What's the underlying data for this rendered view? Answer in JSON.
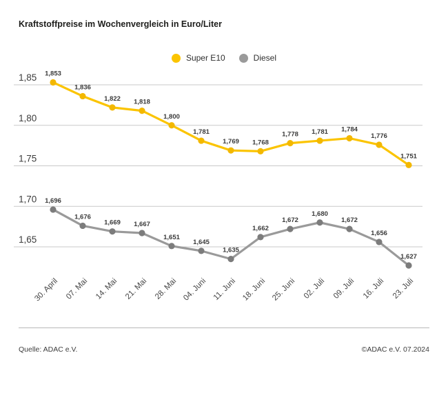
{
  "title": "Kraftstoffpreise im Wochenvergleich in Euro/Liter",
  "footer": {
    "source": "Quelle: ADAC e.V.",
    "copyright": "©ADAC e.V. 07.2024"
  },
  "chart_data": {
    "type": "line",
    "title": "Kraftstoffpreise im Wochenvergleich in Euro/Liter",
    "xlabel": "",
    "ylabel": "Euro/Liter",
    "categories": [
      "30. April",
      "07. Mai",
      "14. Mai",
      "21. Mai",
      "28. Mai",
      "04. Juni",
      "11. Juni",
      "18. Juni",
      "25. Juni",
      "02. Juli",
      "09. Juli",
      "16. Juli",
      "23. Juli"
    ],
    "series": [
      {
        "name": "Super E10",
        "color": "#FBC400",
        "dot_color": "#F3B800",
        "values": [
          1.853,
          1.836,
          1.822,
          1.818,
          1.8,
          1.781,
          1.769,
          1.768,
          1.778,
          1.781,
          1.784,
          1.776,
          1.751
        ]
      },
      {
        "name": "Diesel",
        "color": "#9A9A9A",
        "dot_color": "#7C7C7C",
        "values": [
          1.696,
          1.676,
          1.669,
          1.667,
          1.651,
          1.645,
          1.635,
          1.662,
          1.672,
          1.68,
          1.672,
          1.656,
          1.627
        ]
      }
    ],
    "yticks": [
      1.85,
      1.8,
      1.75,
      1.7,
      1.65
    ],
    "ylim": [
      1.615,
      1.87
    ],
    "grid": true,
    "legend_position": "top-center",
    "value_labels_shown": true,
    "decimal_separator": ",",
    "colors": {
      "grid_line": "#c9c9c9",
      "tick_label": "#3c3c3c",
      "value_label": "#3a3a3a",
      "x_label": "#474747"
    }
  }
}
